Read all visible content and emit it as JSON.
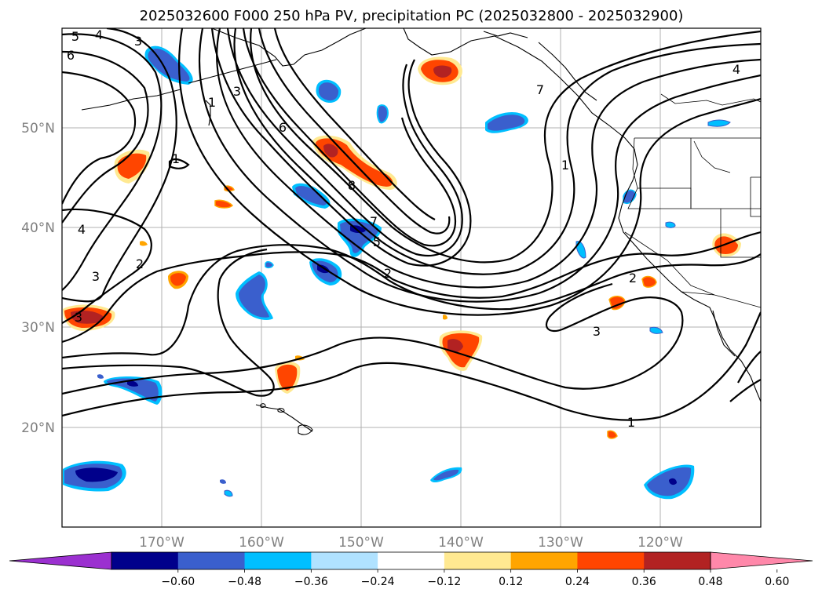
{
  "title": "2025032600 F000 250 hPa PV, precipitation PC (2025032800 - 2025032900)",
  "x_ticks": [
    "170°W",
    "160°W",
    "150°W",
    "140°W",
    "130°W",
    "120°W"
  ],
  "y_ticks": [
    "50°N",
    "40°N",
    "30°N",
    "20°N"
  ],
  "colorbar": {
    "labels": [
      "−0.60",
      "−0.48",
      "−0.36",
      "−0.24",
      "−0.12",
      "0.12",
      "0.24",
      "0.36",
      "0.48",
      "0.60"
    ],
    "colors": [
      "#9b30d0",
      "#00008b",
      "#3a5fcd",
      "#00bfff",
      "#b0e2ff",
      "#ffffff",
      "#ffe991",
      "#ffa500",
      "#ff4500",
      "#b22222",
      "#ff88aa"
    ]
  },
  "contour_labels": [
    "4",
    "5",
    "6",
    "3",
    "1",
    "3",
    "6",
    "8",
    "7",
    "5",
    "2",
    "1",
    "4",
    "1",
    "4",
    "3",
    "2",
    "3",
    "2",
    "3",
    "1",
    "7"
  ],
  "chart_data": {
    "type": "map",
    "lon_range": [
      -180,
      -110
    ],
    "lat_range": [
      10,
      60
    ],
    "contour_field": "250 hPa PV",
    "shaded_field": "precipitation PC",
    "contour_levels": [
      1,
      2,
      3,
      4,
      5,
      6,
      7,
      8
    ],
    "shading_levels": [
      -0.6,
      -0.48,
      -0.36,
      -0.24,
      -0.12,
      0.12,
      0.24,
      0.36,
      0.48,
      0.6
    ],
    "grid": true
  }
}
